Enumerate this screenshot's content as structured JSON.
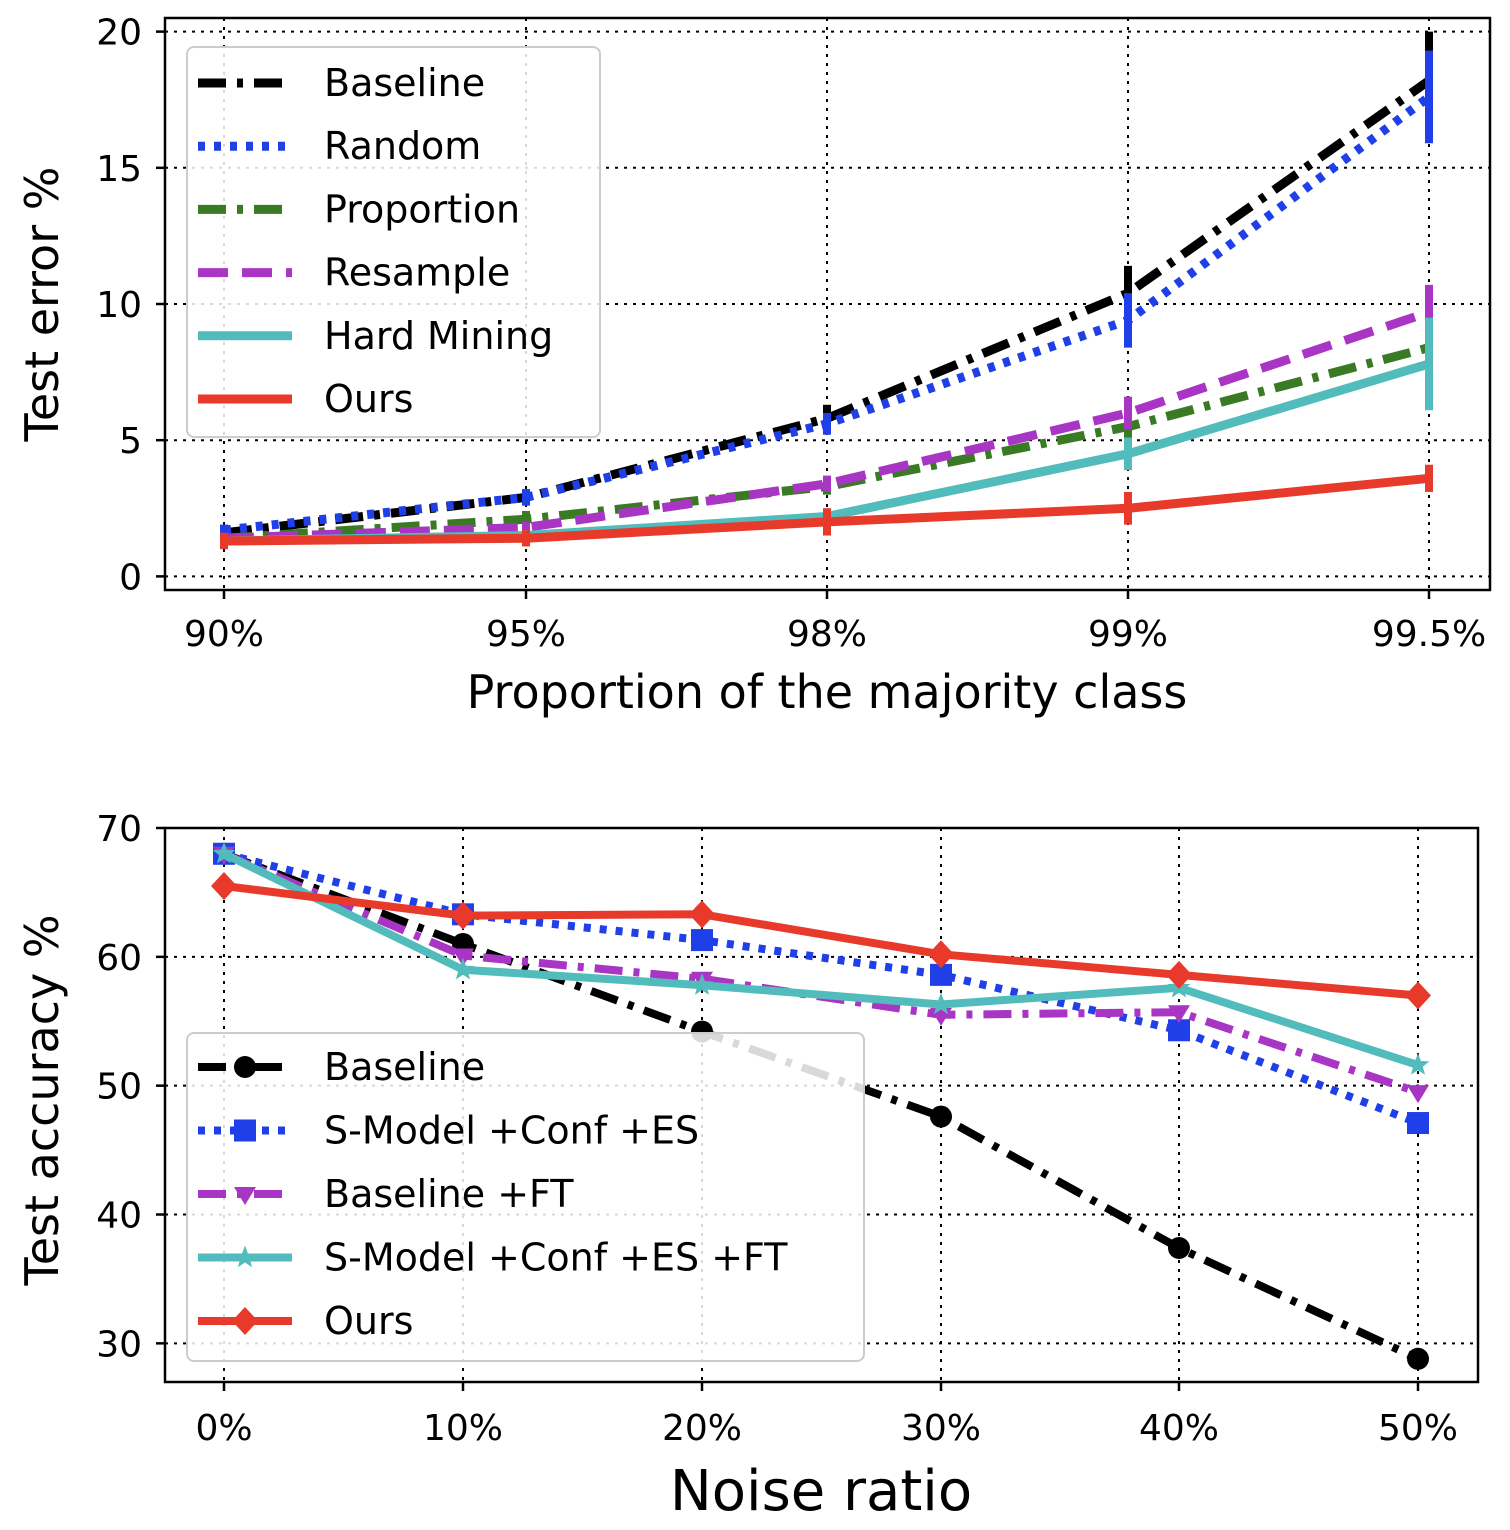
{
  "colors": {
    "baseline": "#000000",
    "random": "#1f3fe8",
    "proportion": "#3a7a24",
    "resample": "#a935c4",
    "hard_mining": "#52bcbc",
    "ours": "#e83a2b"
  },
  "chart_data": [
    {
      "type": "line",
      "title": "",
      "xlabel": "Proportion of the majority class",
      "ylabel": "Test error %",
      "categories": [
        "90%",
        "95%",
        "98%",
        "99%",
        "99.5%"
      ],
      "ylim": [
        -0.5,
        20.5
      ],
      "yticks": [
        0,
        5,
        10,
        15,
        20
      ],
      "grid": true,
      "legend_position": "top-left",
      "series": [
        {
          "name": "Baseline",
          "color_key": "baseline",
          "style": "dashdot",
          "values": [
            1.6,
            2.9,
            5.8,
            10.4,
            18.2
          ],
          "errors": [
            0.2,
            0.3,
            0.5,
            1.0,
            1.8
          ]
        },
        {
          "name": "Random",
          "color_key": "random",
          "style": "dotted",
          "values": [
            1.7,
            2.9,
            5.6,
            9.4,
            17.6
          ],
          "errors": [
            0.2,
            0.3,
            0.4,
            1.0,
            1.7
          ]
        },
        {
          "name": "Proportion",
          "color_key": "proportion",
          "style": "dashdot",
          "values": [
            1.4,
            2.1,
            3.3,
            5.5,
            8.4
          ],
          "errors": [
            0.2,
            0.3,
            0.3,
            0.5,
            1.0
          ]
        },
        {
          "name": "Resample",
          "color_key": "resample",
          "style": "dashed",
          "values": [
            1.4,
            1.8,
            3.4,
            6.0,
            9.7
          ],
          "errors": [
            0.2,
            0.2,
            0.3,
            0.6,
            1.0
          ]
        },
        {
          "name": "Hard Mining",
          "color_key": "hard_mining",
          "style": "solid",
          "values": [
            1.3,
            1.5,
            2.2,
            4.5,
            7.8
          ],
          "errors": [
            0.2,
            0.2,
            0.3,
            0.6,
            1.7
          ]
        },
        {
          "name": "Ours",
          "color_key": "ours",
          "style": "solid",
          "values": [
            1.3,
            1.4,
            2.0,
            2.5,
            3.6
          ],
          "errors": [
            0.3,
            0.3,
            0.5,
            0.6,
            0.5
          ]
        }
      ]
    },
    {
      "type": "line",
      "title": "",
      "xlabel": "Noise ratio",
      "ylabel": "Test accuracy %",
      "categories": [
        "0%",
        "10%",
        "20%",
        "30%",
        "40%",
        "50%"
      ],
      "ylim": [
        27,
        70
      ],
      "yticks": [
        30,
        40,
        50,
        60,
        70
      ],
      "grid": true,
      "legend_position": "bottom-left",
      "series": [
        {
          "name": "Baseline",
          "color_key": "baseline",
          "style": "dashdot",
          "marker": "circle",
          "values": [
            68.0,
            61.0,
            54.2,
            47.6,
            37.4,
            28.8
          ]
        },
        {
          "name": "S-Model +Conf +ES",
          "color_key": "random",
          "style": "dotted",
          "marker": "square",
          "values": [
            68.0,
            63.3,
            61.3,
            58.6,
            54.3,
            47.1
          ]
        },
        {
          "name": "Baseline +FT",
          "color_key": "resample",
          "style": "dashdot",
          "marker": "tri",
          "values": [
            68.0,
            60.1,
            58.3,
            55.5,
            55.7,
            49.5
          ]
        },
        {
          "name": "S-Model +Conf +ES +FT",
          "color_key": "hard_mining",
          "style": "solid",
          "marker": "star",
          "values": [
            68.0,
            59.0,
            57.8,
            56.3,
            57.6,
            51.6
          ]
        },
        {
          "name": "Ours",
          "color_key": "ours",
          "style": "solid",
          "marker": "diamond",
          "values": [
            65.5,
            63.2,
            63.3,
            60.2,
            58.6,
            57.0
          ]
        }
      ]
    }
  ]
}
